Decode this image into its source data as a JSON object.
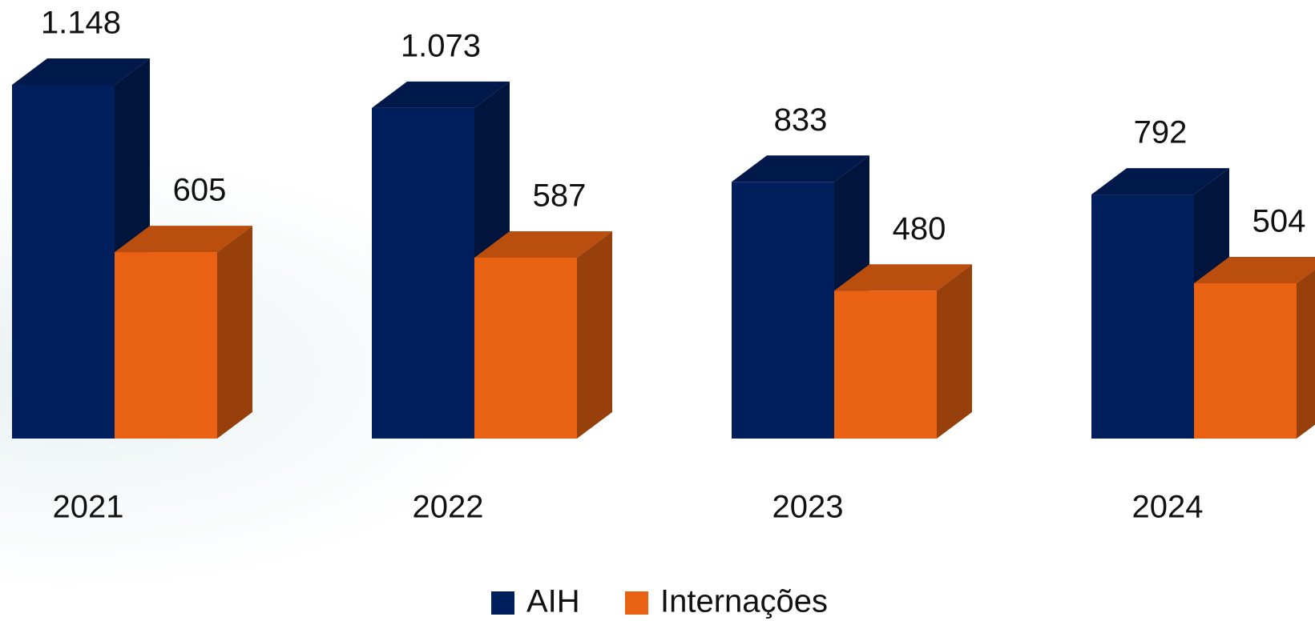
{
  "chart_data": {
    "type": "bar3d",
    "categories": [
      "2021",
      "2022",
      "2023",
      "2024"
    ],
    "series": [
      {
        "name": "AIH",
        "color": "#001f5c",
        "values": [
          1148,
          1073,
          833,
          792
        ],
        "value_labels": [
          "1.148",
          "1.073",
          "833",
          "792"
        ]
      },
      {
        "name": "Internações",
        "color": "#e96213",
        "values": [
          605,
          587,
          480,
          504
        ],
        "value_labels": [
          "605",
          "587",
          "480",
          "504"
        ]
      }
    ],
    "legend": "bottom"
  }
}
